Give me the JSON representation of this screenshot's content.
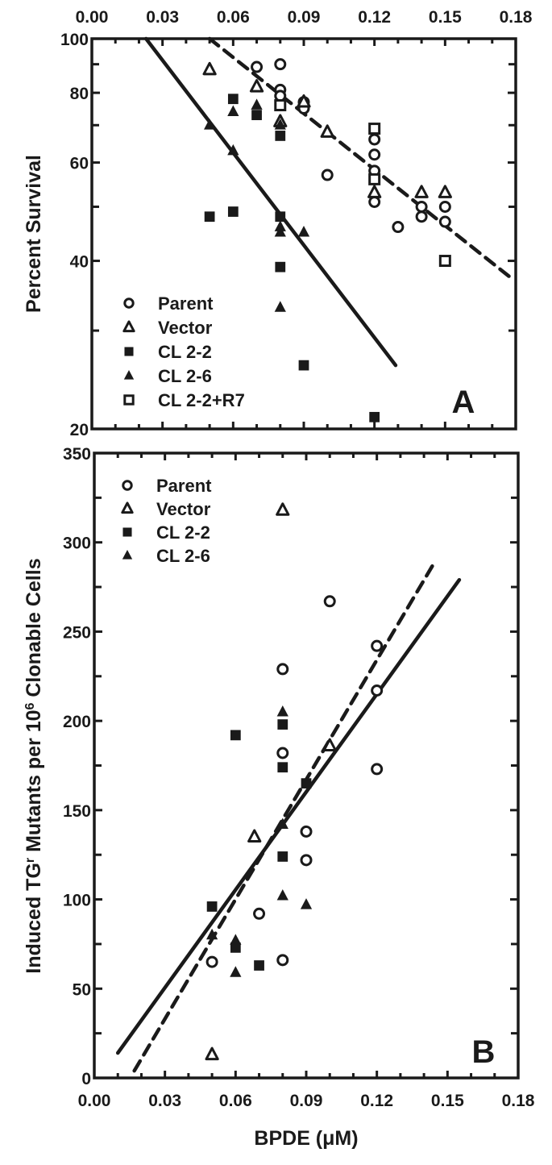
{
  "colors": {
    "ink": "#1a1a1a",
    "background": "#ffffff"
  },
  "chart_data": [
    {
      "type": "scatter",
      "panel": "A",
      "panel_label": "A",
      "ylabel": "Percent Survival",
      "xlabel": "",
      "yscale": "log",
      "xlim": [
        0,
        0.18
      ],
      "ylim": [
        20,
        100
      ],
      "x_ticks": [
        "0.00",
        "0.03",
        "0.06",
        "0.09",
        "0.12",
        "0.15",
        "0.18"
      ],
      "x_tick_values": [
        0,
        0.03,
        0.06,
        0.09,
        0.12,
        0.15,
        0.18
      ],
      "y_ticks": [
        "100",
        "80",
        "60",
        "40",
        "20"
      ],
      "y_tick_values": [
        100,
        80,
        60,
        40,
        20
      ],
      "y_minor_ticks": [
        90,
        70,
        50,
        30
      ],
      "legend": {
        "placement": "bottom-left",
        "entries": [
          {
            "label": "Parent",
            "marker": "open-circle"
          },
          {
            "label": "Vector",
            "marker": "open-triangle"
          },
          {
            "label": "CL 2-2",
            "marker": "filled-square"
          },
          {
            "label": "CL 2-6",
            "marker": "filled-triangle"
          },
          {
            "label": "CL 2-2+R7",
            "marker": "open-square"
          }
        ]
      },
      "series": [
        {
          "name": "Parent",
          "marker": "open-circle",
          "points": [
            [
              0.07,
              89
            ],
            [
              0.08,
              90
            ],
            [
              0.08,
              81
            ],
            [
              0.08,
              79
            ],
            [
              0.09,
              77
            ],
            [
              0.09,
              75
            ],
            [
              0.1,
              57
            ],
            [
              0.12,
              66
            ],
            [
              0.12,
              62
            ],
            [
              0.12,
              58
            ],
            [
              0.12,
              51
            ],
            [
              0.13,
              46
            ],
            [
              0.14,
              48
            ],
            [
              0.14,
              50
            ],
            [
              0.15,
              50
            ],
            [
              0.15,
              47
            ]
          ]
        },
        {
          "name": "Vector",
          "marker": "open-triangle",
          "points": [
            [
              0.05,
              88
            ],
            [
              0.07,
              82
            ],
            [
              0.08,
              71
            ],
            [
              0.09,
              77
            ],
            [
              0.1,
              68
            ],
            [
              0.12,
              53
            ],
            [
              0.14,
              53
            ],
            [
              0.15,
              53
            ]
          ]
        },
        {
          "name": "CL 2-2",
          "marker": "filled-square",
          "points": [
            [
              0.05,
              48
            ],
            [
              0.06,
              49
            ],
            [
              0.06,
              78
            ],
            [
              0.07,
              73
            ],
            [
              0.08,
              67
            ],
            [
              0.08,
              48
            ],
            [
              0.08,
              39
            ],
            [
              0.09,
              26
            ],
            [
              0.12,
              21
            ]
          ]
        },
        {
          "name": "CL 2-6",
          "marker": "filled-triangle",
          "points": [
            [
              0.05,
              70
            ],
            [
              0.06,
              63
            ],
            [
              0.06,
              74
            ],
            [
              0.07,
              76
            ],
            [
              0.08,
              70
            ],
            [
              0.08,
              46
            ],
            [
              0.08,
              45
            ],
            [
              0.08,
              33
            ],
            [
              0.09,
              45
            ]
          ]
        },
        {
          "name": "CL 2-2+R7",
          "marker": "open-square",
          "points": [
            [
              0.08,
              76
            ],
            [
              0.12,
              69
            ],
            [
              0.12,
              56
            ],
            [
              0.15,
              40
            ]
          ]
        }
      ],
      "fit_lines": [
        {
          "name": "solid-fit",
          "style": "solid",
          "from": [
            0.023,
            100
          ],
          "to": [
            0.129,
            26
          ]
        },
        {
          "name": "dashed-fit",
          "style": "dashed",
          "from": [
            0.05,
            100
          ],
          "to": [
            0.179,
            37
          ]
        }
      ]
    },
    {
      "type": "scatter",
      "panel": "B",
      "panel_label": "B",
      "ylabel_parts": [
        "Induced TG",
        "r",
        " Mutants per 10",
        "6",
        " Clonable Cells"
      ],
      "xlabel": "BPDE (μM)",
      "yscale": "linear",
      "xlim": [
        0,
        0.18
      ],
      "ylim": [
        0,
        350
      ],
      "x_ticks": [
        "0.00",
        "0.03",
        "0.06",
        "0.09",
        "0.12",
        "0.15",
        "0.18"
      ],
      "x_tick_values": [
        0,
        0.03,
        0.06,
        0.09,
        0.12,
        0.15,
        0.18
      ],
      "y_ticks": [
        "350",
        "300",
        "250",
        "200",
        "150",
        "100",
        "50",
        "0"
      ],
      "y_tick_values": [
        350,
        300,
        250,
        200,
        150,
        100,
        50,
        0
      ],
      "legend": {
        "placement": "top-left",
        "entries": [
          {
            "label": "Parent",
            "marker": "open-circle"
          },
          {
            "label": "Vector",
            "marker": "open-triangle"
          },
          {
            "label": "CL 2-2",
            "marker": "filled-square"
          },
          {
            "label": "CL 2-6",
            "marker": "filled-triangle"
          }
        ]
      },
      "series": [
        {
          "name": "Parent",
          "marker": "open-circle",
          "points": [
            [
              0.05,
              65
            ],
            [
              0.07,
              92
            ],
            [
              0.08,
              229
            ],
            [
              0.08,
              182
            ],
            [
              0.08,
              66
            ],
            [
              0.09,
              138
            ],
            [
              0.09,
              122
            ],
            [
              0.1,
              267
            ],
            [
              0.12,
              242
            ],
            [
              0.12,
              217
            ],
            [
              0.12,
              173
            ]
          ]
        },
        {
          "name": "Vector",
          "marker": "open-triangle",
          "points": [
            [
              0.05,
              13
            ],
            [
              0.068,
              135
            ],
            [
              0.08,
              318
            ],
            [
              0.1,
              186
            ]
          ]
        },
        {
          "name": "CL 2-2",
          "marker": "filled-square",
          "points": [
            [
              0.05,
              96
            ],
            [
              0.06,
              192
            ],
            [
              0.06,
              73
            ],
            [
              0.07,
              63
            ],
            [
              0.08,
              198
            ],
            [
              0.08,
              174
            ],
            [
              0.08,
              124
            ],
            [
              0.09,
              165
            ]
          ]
        },
        {
          "name": "CL 2-6",
          "marker": "filled-triangle",
          "points": [
            [
              0.05,
              80
            ],
            [
              0.06,
              77
            ],
            [
              0.06,
              59
            ],
            [
              0.08,
              205
            ],
            [
              0.08,
              142
            ],
            [
              0.08,
              102
            ],
            [
              0.09,
              97
            ]
          ]
        }
      ],
      "fit_lines": [
        {
          "name": "solid-fit",
          "style": "solid",
          "from": [
            0.01,
            14
          ],
          "to": [
            0.155,
            279
          ]
        },
        {
          "name": "dashed-fit",
          "style": "dashed",
          "from": [
            0.017,
            4
          ],
          "to": [
            0.145,
            290
          ]
        }
      ]
    }
  ]
}
